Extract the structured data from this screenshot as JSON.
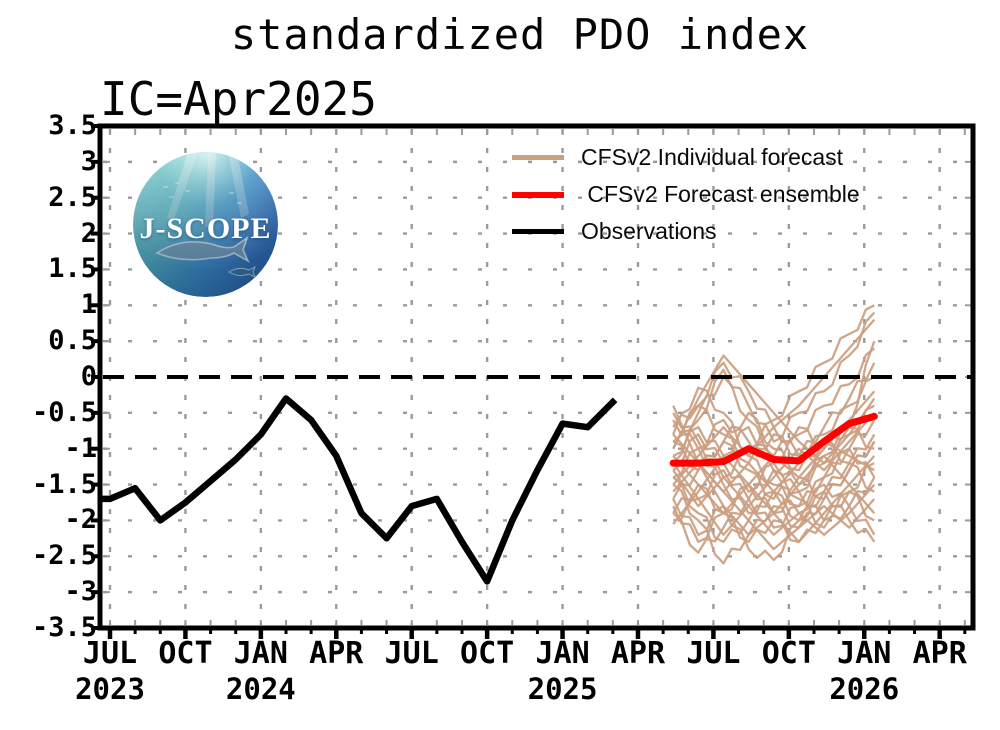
{
  "title": "standardized PDO index",
  "init_label": "IC=Apr2025",
  "logo": {
    "text": "J-SCOPE"
  },
  "colors": {
    "individual_forecast": "#cb9e80",
    "forecast_ensemble": "#ff0000",
    "observations": "#000000",
    "grid": "#9b9b9b",
    "zero_line": "#000000",
    "frame": "#000000"
  },
  "legend": {
    "items": [
      {
        "label": "CFSv2 Individual forecast",
        "color": "#cb9e80",
        "weight": 5
      },
      {
        "label": " CFSv2 Forecast ensemble",
        "color": "#ff0000",
        "weight": 6
      },
      {
        "label": "Observations",
        "color": "#000000",
        "weight": 5
      }
    ]
  },
  "chart_data": {
    "type": "line",
    "title": "standardized PDO index",
    "initial_condition": "Apr2025",
    "ylabel": "",
    "xlabel": "",
    "ylim": [
      -3.5,
      3.5
    ],
    "xlim": [
      "Jun 2023",
      "May 2026"
    ],
    "grid": true,
    "zero_line_value": 0,
    "y_axis": {
      "tick_step": 0.5,
      "labels": [
        "3.5",
        "3",
        "2.5",
        "2",
        "1.5",
        "1",
        "0.5",
        "0",
        "-0.5",
        "-1",
        "-1.5",
        "-2",
        "-2.5",
        "-3",
        "-3.5"
      ],
      "label_values": [
        3.5,
        3,
        2.5,
        2,
        1.5,
        1,
        0.5,
        0,
        -0.5,
        -1,
        -1.5,
        -2,
        -2.5,
        -3,
        -3.5
      ]
    },
    "x_axis": {
      "month_tick_labels": [
        "JUL",
        "OCT",
        "JAN",
        "APR",
        "JUL",
        "OCT",
        "JAN",
        "APR",
        "JUL",
        "OCT",
        "JAN",
        "APR"
      ],
      "month_tick_indices": [
        0,
        3,
        6,
        9,
        12,
        15,
        18,
        21,
        24,
        27,
        30,
        33
      ],
      "year_labels": [
        {
          "label": "2023",
          "month_index": 0
        },
        {
          "label": "2024",
          "month_index": 6
        },
        {
          "label": "2025",
          "month_index": 18
        },
        {
          "label": "2026",
          "month_index": 30
        }
      ],
      "months_total": 34
    },
    "series": [
      {
        "name": "Observations",
        "color": "#000000",
        "start": "Jul 2023",
        "end": "Mar 2025",
        "start_month_index": 0,
        "values": [
          -1.7,
          -1.55,
          -2.0,
          -1.75,
          -1.45,
          -1.15,
          -0.8,
          -0.3,
          -0.6,
          -1.1,
          -1.9,
          -2.25,
          -1.8,
          -1.7,
          -2.3,
          -2.85,
          -2.0,
          -1.3,
          -0.65,
          -0.7,
          -0.35
        ]
      },
      {
        "name": "CFSv2 Forecast ensemble",
        "color": "#ff0000",
        "start": "May 2025",
        "end": "Jan 2026",
        "start_month_index": 22.4,
        "values": [
          -1.2,
          -1.2,
          -1.18,
          -1.0,
          -1.15,
          -1.17,
          -0.9,
          -0.65,
          -0.55
        ]
      }
    ],
    "ensemble_members": {
      "name": "CFSv2 Individual forecast",
      "color": "#cb9e80",
      "start": "May 2025",
      "end": "Jan 2026",
      "start_month_index": 22.4,
      "envelope_min": [
        -2.05,
        -2.45,
        -2.6,
        -2.4,
        -2.55,
        -2.3,
        -2.2,
        -2.1,
        -2.3
      ],
      "envelope_max": [
        -0.4,
        0.2,
        0.3,
        -0.1,
        0.1,
        0.2,
        0.5,
        0.9,
        1.0
      ],
      "members": [
        [
          -1.2,
          -0.6,
          0.1,
          -0.4,
          -0.9,
          -0.5,
          -0.2,
          0.3,
          0.9
        ],
        [
          -1.0,
          -0.3,
          0.3,
          -0.1,
          -0.5,
          -0.9,
          -1.2,
          -0.8,
          -0.3
        ],
        [
          -0.8,
          -0.15,
          -0.5,
          -1.1,
          -1.5,
          -1.8,
          -1.4,
          -1.0,
          -0.6
        ],
        [
          -0.5,
          -0.9,
          -1.4,
          -1.0,
          -0.6,
          -0.2,
          0.2,
          0.6,
          1.0
        ],
        [
          -0.4,
          -1.2,
          -1.8,
          -2.2,
          -1.9,
          -1.5,
          -1.1,
          -1.5,
          -1.9
        ],
        [
          -1.5,
          -2.0,
          -2.6,
          -2.2,
          -1.8,
          -2.1,
          -1.7,
          -1.3,
          -0.9
        ],
        [
          -1.7,
          -2.2,
          -1.8,
          -2.4,
          -2.55,
          -2.0,
          -1.6,
          -2.0,
          -2.3
        ],
        [
          -2.05,
          -1.6,
          -1.1,
          -1.5,
          -1.9,
          -2.3,
          -1.9,
          -1.5,
          -1.1
        ],
        [
          -1.9,
          -2.45,
          -2.1,
          -1.7,
          -1.3,
          -1.7,
          -2.1,
          -1.8,
          -1.4
        ],
        [
          -1.3,
          -0.8,
          -1.2,
          -1.6,
          -1.2,
          -0.8,
          -0.4,
          -0.1,
          0.4
        ],
        [
          -1.1,
          -1.5,
          -1.9,
          -1.5,
          -1.1,
          -1.4,
          -1.0,
          -0.6,
          -0.2
        ],
        [
          -0.9,
          -1.3,
          -0.9,
          -0.5,
          -1.0,
          -1.3,
          -0.9,
          -1.2,
          -0.8
        ],
        [
          -1.4,
          -1.0,
          -0.6,
          -0.9,
          -1.3,
          -1.6,
          -2.0,
          -1.6,
          -1.2
        ],
        [
          -1.6,
          -1.2,
          -1.6,
          -2.0,
          -2.4,
          -2.1,
          -1.8,
          -2.1,
          -1.7
        ],
        [
          -0.7,
          -0.4,
          -0.8,
          -1.2,
          -0.8,
          -1.1,
          -0.7,
          -0.3,
          0.2
        ],
        [
          -1.8,
          -2.3,
          -1.9,
          -1.5,
          -1.9,
          -1.6,
          -1.2,
          -0.8,
          -0.4
        ],
        [
          -1.2,
          -1.7,
          -2.2,
          -1.8,
          -1.4,
          -1.0,
          -1.3,
          -0.9,
          -0.5
        ],
        [
          -1.0,
          -0.5,
          0.0,
          -0.6,
          -1.1,
          -0.7,
          -1.0,
          -0.7,
          -1.0
        ],
        [
          -0.6,
          -1.0,
          -1.5,
          -1.9,
          -1.6,
          -1.9,
          -1.5,
          -1.8,
          -2.2
        ],
        [
          -1.5,
          -1.1,
          -0.7,
          -1.1,
          -0.7,
          -0.4,
          0.0,
          0.4,
          0.8
        ],
        [
          -1.9,
          -1.5,
          -1.9,
          -2.3,
          -2.0,
          -2.3,
          -2.0,
          -1.6,
          -2.0
        ],
        [
          -0.9,
          -0.4,
          0.2,
          -0.2,
          -0.7,
          -1.1,
          -0.8,
          -0.4,
          0.0
        ],
        [
          -1.3,
          -1.8,
          -1.4,
          -1.8,
          -2.2,
          -1.9,
          -2.2,
          -1.9,
          -1.5
        ],
        [
          -1.7,
          -1.3,
          -0.9,
          -1.3,
          -1.7,
          -1.4,
          -1.7,
          -1.3,
          -0.9
        ],
        [
          -1.1,
          -0.7,
          -1.1,
          -0.7,
          -1.2,
          -1.5,
          -1.1,
          -0.7,
          0.5
        ],
        [
          -0.8,
          -1.2,
          -1.6,
          -1.2,
          -1.6,
          -1.2,
          -0.9,
          -1.1,
          -1.3
        ],
        [
          -1.4,
          -1.9,
          -2.3,
          -2.0,
          -1.6,
          -2.0,
          -1.6,
          -1.2,
          -1.6
        ],
        [
          -2.0,
          -1.7,
          -1.3,
          -1.7,
          -2.1,
          -1.8,
          -1.4,
          -1.0,
          -1.4
        ]
      ]
    }
  }
}
